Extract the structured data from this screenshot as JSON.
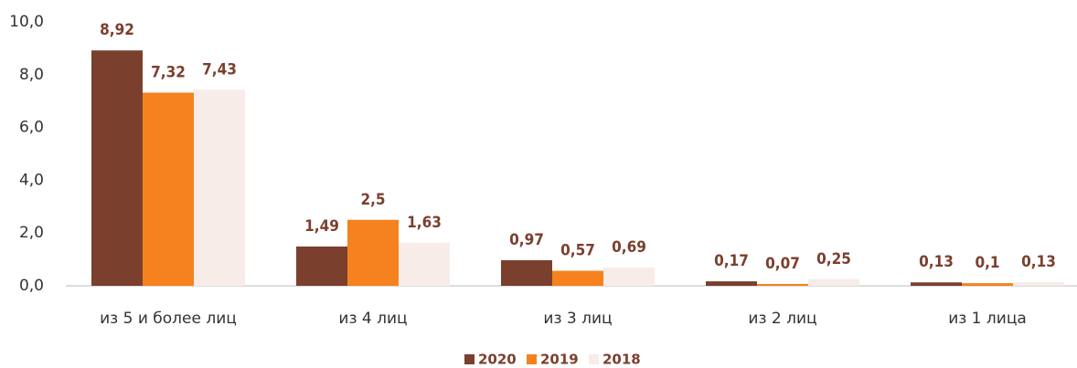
{
  "chart_data": {
    "type": "bar",
    "categories": [
      "из 5 и более лиц",
      "из 4 лиц",
      "из 3 лиц",
      "из 2 лиц",
      "из 1 лица"
    ],
    "series": [
      {
        "name": "2020",
        "color": "#7b3f2e",
        "values": [
          8.92,
          1.49,
          0.97,
          0.17,
          0.13
        ],
        "value_labels": [
          "8,92",
          "1,49",
          "0,97",
          "0,17",
          "0,13"
        ]
      },
      {
        "name": "2019",
        "color": "#f5821f",
        "values": [
          7.32,
          2.5,
          0.57,
          0.07,
          0.1
        ],
        "value_labels": [
          "7,32",
          "2,5",
          "0,57",
          "0,07",
          "0,1"
        ]
      },
      {
        "name": "2018",
        "color": "#f7ece8",
        "values": [
          7.43,
          1.63,
          0.69,
          0.25,
          0.13
        ],
        "value_labels": [
          "7,43",
          "1,63",
          "0,69",
          "0,25",
          "0,13"
        ]
      }
    ],
    "ylim": [
      0,
      10
    ],
    "yticks": [
      {
        "value": 0,
        "label": "0,0"
      },
      {
        "value": 2,
        "label": "2,0"
      },
      {
        "value": 4,
        "label": "4,0"
      },
      {
        "value": 6,
        "label": "6,0"
      },
      {
        "value": 8,
        "label": "8,0"
      },
      {
        "value": 10,
        "label": "10,0"
      }
    ],
    "legend": "bottom"
  }
}
